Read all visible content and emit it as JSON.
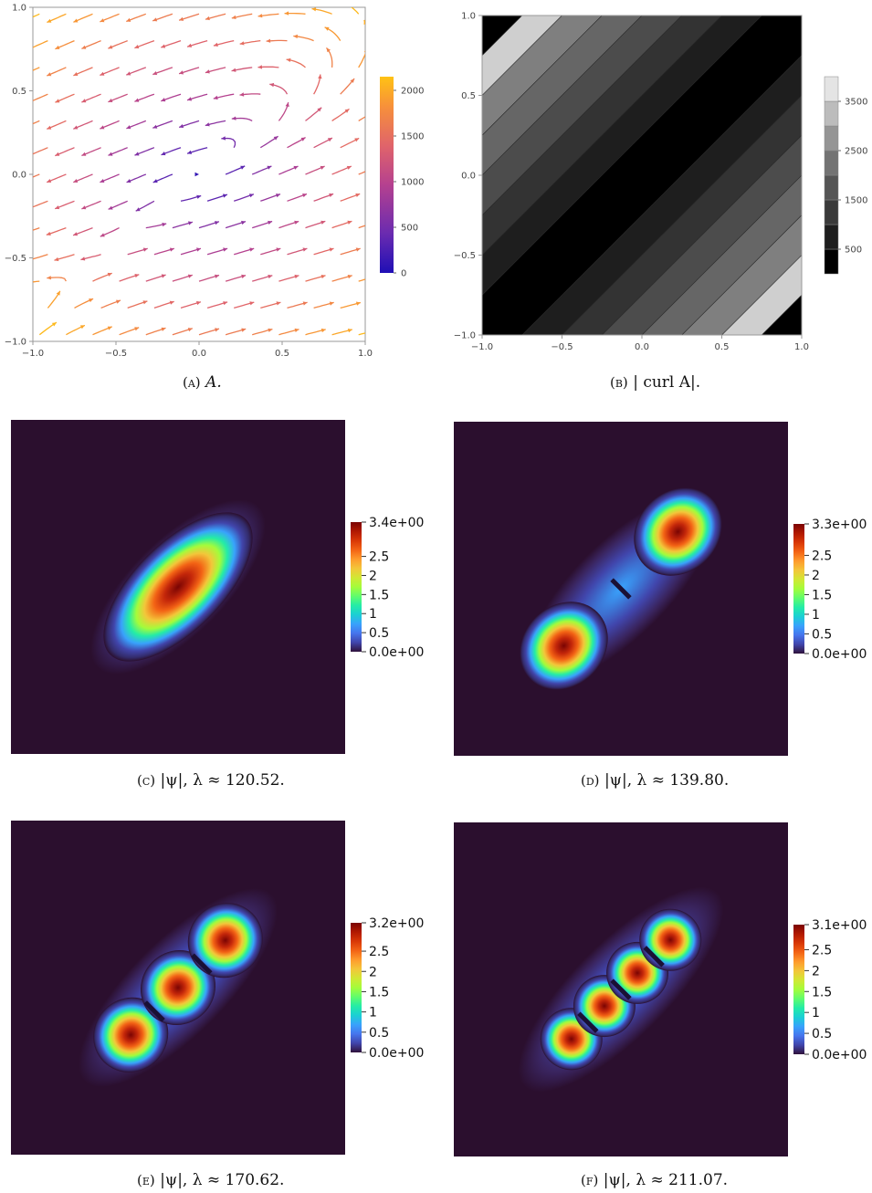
{
  "panels": [
    {
      "id": "a",
      "caption_label": "(a)",
      "caption_text": "A.",
      "chart_data": {
        "type": "streamplot",
        "x_ticks": [
          "−1.0",
          "−0.5",
          "0.0",
          "0.5",
          "1.0"
        ],
        "y_ticks": [
          "−1.0",
          "−0.5",
          "0.0",
          "0.5",
          "1.0"
        ],
        "xlim": [
          -1,
          1
        ],
        "ylim": [
          -1,
          1
        ],
        "colorbar": {
          "ticks": [
            "0",
            "500",
            "1000",
            "1500",
            "2000"
          ],
          "range": [
            0,
            2150
          ],
          "colors": [
            "#1f0fb5",
            "#6a2bb0",
            "#b5418f",
            "#e0646a",
            "#f7913a",
            "#ffc214"
          ]
        }
      }
    },
    {
      "id": "b",
      "caption_label": "(b)",
      "caption_text": "| curl A|.",
      "chart_data": {
        "type": "contour",
        "x_ticks": [
          "−1.0",
          "−0.5",
          "0.0",
          "0.5",
          "1.0"
        ],
        "y_ticks": [
          "−1.0",
          "−0.5",
          "0.0",
          "0.5",
          "1.0"
        ],
        "xlim": [
          -1,
          1
        ],
        "ylim": [
          -1,
          1
        ],
        "levels": [
          500,
          1000,
          1500,
          2000,
          2500,
          3000,
          3500
        ],
        "colorbar": {
          "ticks": [
            "500",
            "1500",
            "2500",
            "3500"
          ],
          "range": [
            0,
            4000
          ]
        }
      }
    },
    {
      "id": "c",
      "caption_label": "(c)",
      "caption_text": "|ψ|, λ ≈ 120.52.",
      "chart_data": {
        "type": "heatmap",
        "blobs": 1,
        "colorbar": {
          "max_label": "3.4e+00",
          "min_label": "0.0e+00",
          "ticks": [
            "2.5",
            "2",
            "1.5",
            "1",
            "0.5"
          ],
          "range": [
            0,
            3.4
          ]
        }
      }
    },
    {
      "id": "d",
      "caption_label": "(d)",
      "caption_text": "|ψ|, λ ≈ 139.80.",
      "chart_data": {
        "type": "heatmap",
        "blobs": 2,
        "colorbar": {
          "max_label": "3.3e+00",
          "min_label": "0.0e+00",
          "ticks": [
            "2.5",
            "2",
            "1.5",
            "1",
            "0.5"
          ],
          "range": [
            0,
            3.3
          ]
        }
      }
    },
    {
      "id": "e",
      "caption_label": "(e)",
      "caption_text": "|ψ|, λ ≈ 170.62.",
      "chart_data": {
        "type": "heatmap",
        "blobs": 3,
        "colorbar": {
          "max_label": "3.2e+00",
          "min_label": "0.0e+00",
          "ticks": [
            "2.5",
            "2",
            "1.5",
            "1",
            "0.5"
          ],
          "range": [
            0,
            3.2
          ]
        }
      }
    },
    {
      "id": "f",
      "caption_label": "(f)",
      "caption_text": "|ψ|, λ ≈ 211.07.",
      "chart_data": {
        "type": "heatmap",
        "blobs": 4,
        "colorbar": {
          "max_label": "3.1e+00",
          "min_label": "0.0e+00",
          "ticks": [
            "2.5",
            "2",
            "1.5",
            "1",
            "0.5"
          ],
          "range": [
            0,
            3.1
          ]
        }
      }
    }
  ],
  "colors": {
    "heatmap_background": "#2b0f2e",
    "turbo_stops": [
      "#30123b",
      "#4145ab",
      "#4675ed",
      "#39a2fc",
      "#1bcfd4",
      "#24eca6",
      "#61fc6c",
      "#a4fc3b",
      "#d1e834",
      "#f3c63a",
      "#fe9b2d",
      "#f36315",
      "#d93806",
      "#b11901",
      "#7a0403"
    ]
  }
}
